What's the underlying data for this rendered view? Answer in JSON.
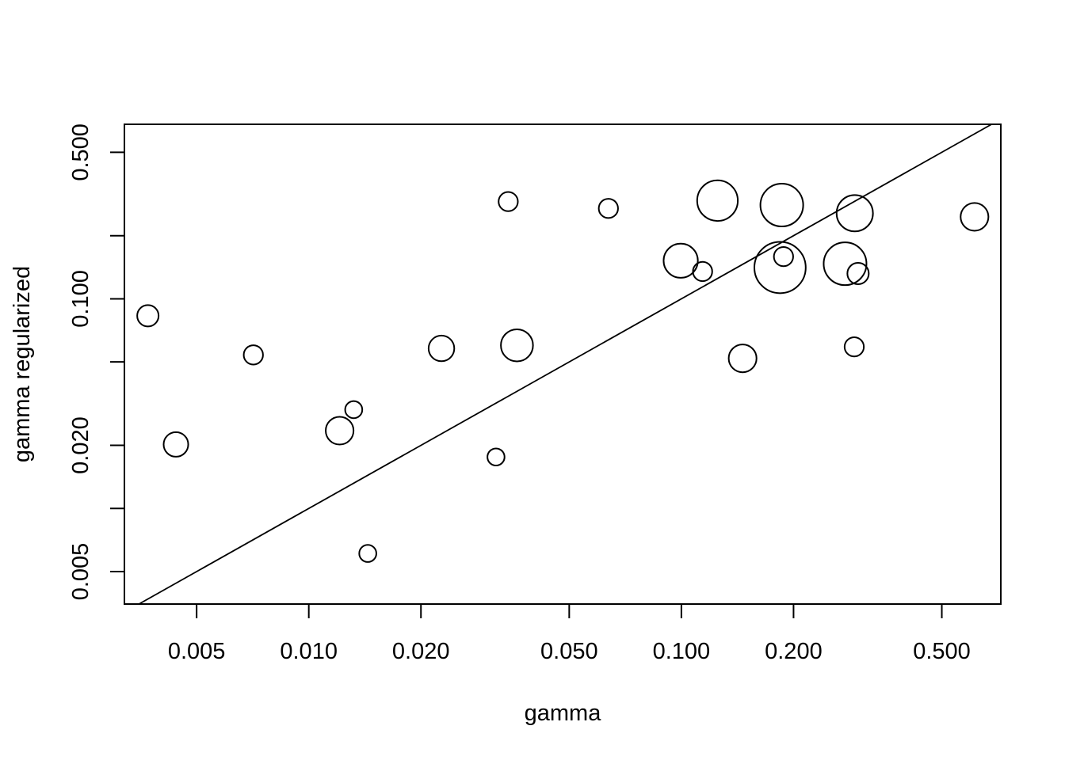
{
  "chart_data": {
    "type": "scatter",
    "title": "",
    "xlabel": "gamma",
    "ylabel": "gamma regularized",
    "x_scale": "log",
    "y_scale": "log",
    "xlim": [
      0.0032,
      0.72
    ],
    "ylim": [
      0.0035,
      0.68
    ],
    "x_ticks": [
      0.005,
      0.01,
      0.02,
      0.05,
      0.1,
      0.2,
      0.5
    ],
    "x_tick_labels": [
      "0.005",
      "0.010",
      "0.020",
      "0.050",
      "0.100",
      "0.200",
      "0.500"
    ],
    "y_ticks": [
      0.005,
      0.01,
      0.02,
      0.05,
      0.1,
      0.2,
      0.5
    ],
    "y_tick_labels": [
      "0.005",
      "",
      "0.020",
      "",
      "0.100",
      "",
      "0.500"
    ],
    "reference_line": "y = x",
    "grid": false,
    "legend": "none",
    "marker": "open-circle",
    "size_encoding": "relative marker size",
    "points": [
      {
        "x": 0.0037,
        "y": 0.083,
        "size": 1.0
      },
      {
        "x": 0.0044,
        "y": 0.0202,
        "size": 1.15
      },
      {
        "x": 0.0071,
        "y": 0.054,
        "size": 0.9
      },
      {
        "x": 0.0121,
        "y": 0.0235,
        "size": 1.3
      },
      {
        "x": 0.0132,
        "y": 0.0296,
        "size": 0.8
      },
      {
        "x": 0.0144,
        "y": 0.0061,
        "size": 0.8
      },
      {
        "x": 0.0227,
        "y": 0.058,
        "size": 1.2
      },
      {
        "x": 0.0318,
        "y": 0.0176,
        "size": 0.8
      },
      {
        "x": 0.0343,
        "y": 0.291,
        "size": 0.9
      },
      {
        "x": 0.0362,
        "y": 0.06,
        "size": 1.5
      },
      {
        "x": 0.0637,
        "y": 0.27,
        "size": 0.9
      },
      {
        "x": 0.0996,
        "y": 0.152,
        "size": 1.6
      },
      {
        "x": 0.114,
        "y": 0.135,
        "size": 0.9
      },
      {
        "x": 0.125,
        "y": 0.294,
        "size": 1.9
      },
      {
        "x": 0.146,
        "y": 0.052,
        "size": 1.3
      },
      {
        "x": 0.184,
        "y": 0.141,
        "size": 2.4
      },
      {
        "x": 0.186,
        "y": 0.28,
        "size": 2.0
      },
      {
        "x": 0.188,
        "y": 0.159,
        "size": 0.9
      },
      {
        "x": 0.275,
        "y": 0.147,
        "size": 2.0
      },
      {
        "x": 0.292,
        "y": 0.256,
        "size": 1.7
      },
      {
        "x": 0.291,
        "y": 0.059,
        "size": 0.9
      },
      {
        "x": 0.298,
        "y": 0.132,
        "size": 1.0
      },
      {
        "x": 0.612,
        "y": 0.246,
        "size": 1.3
      }
    ]
  }
}
